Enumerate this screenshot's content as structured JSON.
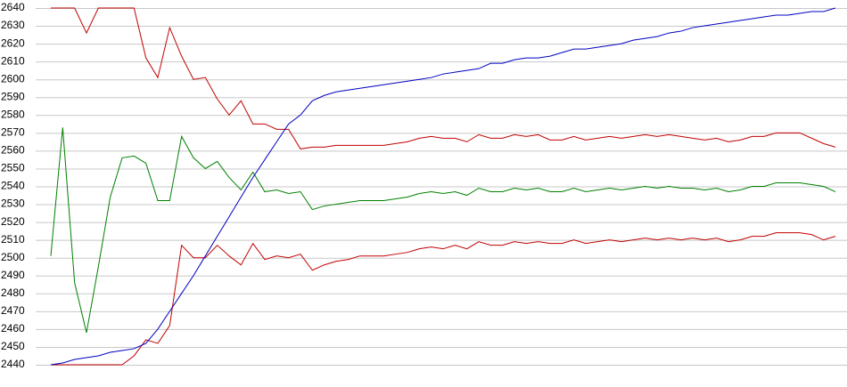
{
  "chart_data": {
    "type": "line",
    "ylim": [
      2440,
      2640
    ],
    "yticks": [
      2440,
      2450,
      2460,
      2470,
      2480,
      2490,
      2500,
      2510,
      2520,
      2530,
      2540,
      2550,
      2560,
      2570,
      2580,
      2590,
      2600,
      2610,
      2620,
      2630,
      2640
    ],
    "grid": true,
    "series": [
      {
        "color": "#c00000",
        "values": [
          2640,
          2640,
          2640,
          2626,
          2640,
          2640,
          2640,
          2640,
          2612,
          2601,
          2629,
          2613,
          2600,
          2601,
          2589,
          2580,
          2588,
          2575,
          2575,
          2572,
          2572,
          2561,
          2562,
          2562,
          2563,
          2563,
          2563,
          2563,
          2563,
          2564,
          2565,
          2567,
          2568,
          2567,
          2567,
          2565,
          2569,
          2567,
          2567,
          2569,
          2568,
          2569,
          2566,
          2566,
          2568,
          2566,
          2567,
          2568,
          2567,
          2568,
          2569,
          2568,
          2569,
          2568,
          2567,
          2566,
          2567,
          2565,
          2566,
          2568,
          2568,
          2570,
          2570,
          2570,
          2567,
          2564,
          2562
        ]
      },
      {
        "color": "#008000",
        "values": [
          2501,
          2573,
          2486,
          2458,
          2495,
          2534,
          2556,
          2557,
          2553,
          2532,
          2532,
          2568,
          2556,
          2550,
          2554,
          2545,
          2538,
          2548,
          2537,
          2538,
          2536,
          2537,
          2527,
          2529,
          2530,
          2531,
          2532,
          2532,
          2532,
          2533,
          2534,
          2536,
          2537,
          2536,
          2537,
          2535,
          2539,
          2537,
          2537,
          2539,
          2538,
          2539,
          2537,
          2537,
          2539,
          2537,
          2538,
          2539,
          2538,
          2539,
          2540,
          2539,
          2540,
          2539,
          2539,
          2538,
          2539,
          2537,
          2538,
          2540,
          2540,
          2542,
          2542,
          2542,
          2541,
          2540,
          2537
        ]
      },
      {
        "color": "#c00000",
        "values": [
          2440,
          2440,
          2440,
          2440,
          2440,
          2440,
          2440,
          2445,
          2454,
          2452,
          2462,
          2507,
          2500,
          2500,
          2507,
          2501,
          2496,
          2508,
          2499,
          2501,
          2500,
          2502,
          2493,
          2496,
          2498,
          2499,
          2501,
          2501,
          2501,
          2502,
          2503,
          2505,
          2506,
          2505,
          2507,
          2505,
          2509,
          2507,
          2507,
          2509,
          2508,
          2509,
          2508,
          2508,
          2510,
          2508,
          2509,
          2510,
          2509,
          2510,
          2511,
          2510,
          2511,
          2510,
          2511,
          2510,
          2511,
          2509,
          2510,
          2512,
          2512,
          2514,
          2514,
          2514,
          2513,
          2510,
          2512
        ]
      },
      {
        "color": "#0000c0",
        "values": [
          2440,
          2441,
          2443,
          2444,
          2445,
          2447,
          2448,
          2449,
          2452,
          2460,
          2470,
          2480,
          2490,
          2501,
          2512,
          2523,
          2534,
          2545,
          2555,
          2565,
          2575,
          2580,
          2588,
          2591,
          2593,
          2594,
          2595,
          2596,
          2597,
          2598,
          2599,
          2600,
          2601,
          2603,
          2604,
          2605,
          2606,
          2609,
          2609,
          2611,
          2612,
          2612,
          2613,
          2615,
          2617,
          2617,
          2618,
          2619,
          2620,
          2622,
          2623,
          2624,
          2626,
          2627,
          2629,
          2630,
          2631,
          2632,
          2633,
          2634,
          2635,
          2636,
          2636,
          2637,
          2638,
          2638,
          2640
        ]
      }
    ]
  }
}
